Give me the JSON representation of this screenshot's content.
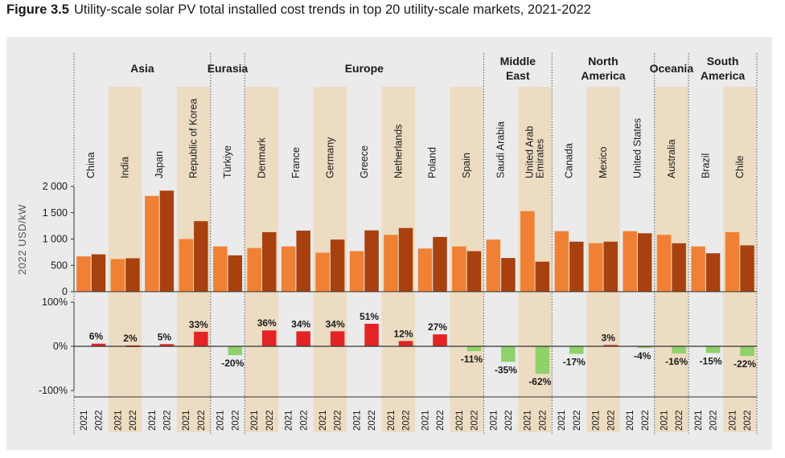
{
  "figure": {
    "number": "Figure 3.5",
    "title": "Utility-scale solar PV total installed cost trends in top 20 utility-scale markets, 2021-2022"
  },
  "colors": {
    "bar_2021": "#f08033",
    "bar_2022": "#a8410f",
    "increase": "#e42424",
    "decrease": "#8fd16a",
    "band": "#ecdcc2",
    "panel": "#ebebec"
  },
  "chart_data": {
    "type": "bar",
    "ylabel": "2022 USD/kW",
    "cost_axis": {
      "ylim": [
        0,
        2000
      ],
      "ticks": [
        0,
        500,
        1000,
        1500,
        2000
      ],
      "tick_labels": [
        "0",
        "500",
        "1 000",
        "1 500",
        "2 000"
      ]
    },
    "change_axis": {
      "ylim": [
        -100,
        100
      ],
      "ticks": [
        100,
        0,
        -100
      ],
      "tick_labels": [
        "100%",
        "0%",
        "-100%"
      ]
    },
    "years": [
      "2021",
      "2022"
    ],
    "regions": [
      {
        "lines": [
          "Asia"
        ],
        "countries": [
          0,
          3
        ]
      },
      {
        "lines": [
          "Eurasia"
        ],
        "countries": [
          4,
          4
        ]
      },
      {
        "lines": [
          "Europe"
        ],
        "countries": [
          5,
          11
        ]
      },
      {
        "lines": [
          "Middle",
          "East"
        ],
        "countries": [
          12,
          13
        ]
      },
      {
        "lines": [
          "North",
          "America"
        ],
        "countries": [
          14,
          16
        ]
      },
      {
        "lines": [
          "Oceania"
        ],
        "countries": [
          17,
          17
        ]
      },
      {
        "lines": [
          "South",
          "America"
        ],
        "countries": [
          18,
          19
        ]
      }
    ],
    "countries": [
      {
        "name": [
          "China"
        ],
        "v2021": 670,
        "v2022": 710,
        "change": 6,
        "label": "6%"
      },
      {
        "name": [
          "India"
        ],
        "v2021": 620,
        "v2022": 635,
        "change": 2,
        "label": "2%"
      },
      {
        "name": [
          "Japan"
        ],
        "v2021": 1820,
        "v2022": 1920,
        "change": 5,
        "label": "5%"
      },
      {
        "name": [
          "Republic of Korea"
        ],
        "v2021": 1000,
        "v2022": 1340,
        "change": 33,
        "label": "33%"
      },
      {
        "name": [
          "Türkiye"
        ],
        "v2021": 860,
        "v2022": 690,
        "change": -20,
        "label": "-20%"
      },
      {
        "name": [
          "Denmark"
        ],
        "v2021": 830,
        "v2022": 1130,
        "change": 36,
        "label": "36%"
      },
      {
        "name": [
          "France"
        ],
        "v2021": 860,
        "v2022": 1160,
        "change": 34,
        "label": "34%"
      },
      {
        "name": [
          "Germany"
        ],
        "v2021": 740,
        "v2022": 990,
        "change": 34,
        "label": "34%"
      },
      {
        "name": [
          "Greece"
        ],
        "v2021": 770,
        "v2022": 1165,
        "change": 51,
        "label": "51%"
      },
      {
        "name": [
          "Netherlands"
        ],
        "v2021": 1080,
        "v2022": 1210,
        "change": 12,
        "label": "12%"
      },
      {
        "name": [
          "Poland"
        ],
        "v2021": 820,
        "v2022": 1040,
        "change": 27,
        "label": "27%"
      },
      {
        "name": [
          "Spain"
        ],
        "v2021": 860,
        "v2022": 770,
        "change": -11,
        "label": "-11%"
      },
      {
        "name": [
          "Saudi Arabia"
        ],
        "v2021": 990,
        "v2022": 640,
        "change": -35,
        "label": "-35%"
      },
      {
        "name": [
          "United Arab",
          "Emirates"
        ],
        "v2021": 1530,
        "v2022": 570,
        "change": -62,
        "label": "-62%"
      },
      {
        "name": [
          "Canada"
        ],
        "v2021": 1150,
        "v2022": 950,
        "change": -17,
        "label": "-17%"
      },
      {
        "name": [
          "Mexico"
        ],
        "v2021": 920,
        "v2022": 950,
        "change": 3,
        "label": "3%"
      },
      {
        "name": [
          "United States"
        ],
        "v2021": 1150,
        "v2022": 1110,
        "change": -4,
        "label": "-4%"
      },
      {
        "name": [
          "Australia"
        ],
        "v2021": 1080,
        "v2022": 920,
        "change": -16,
        "label": "-16%"
      },
      {
        "name": [
          "Brazil"
        ],
        "v2021": 860,
        "v2022": 730,
        "change": -15,
        "label": "-15%"
      },
      {
        "name": [
          "Chile"
        ],
        "v2021": 1130,
        "v2022": 880,
        "change": -22,
        "label": "-22%"
      }
    ]
  }
}
